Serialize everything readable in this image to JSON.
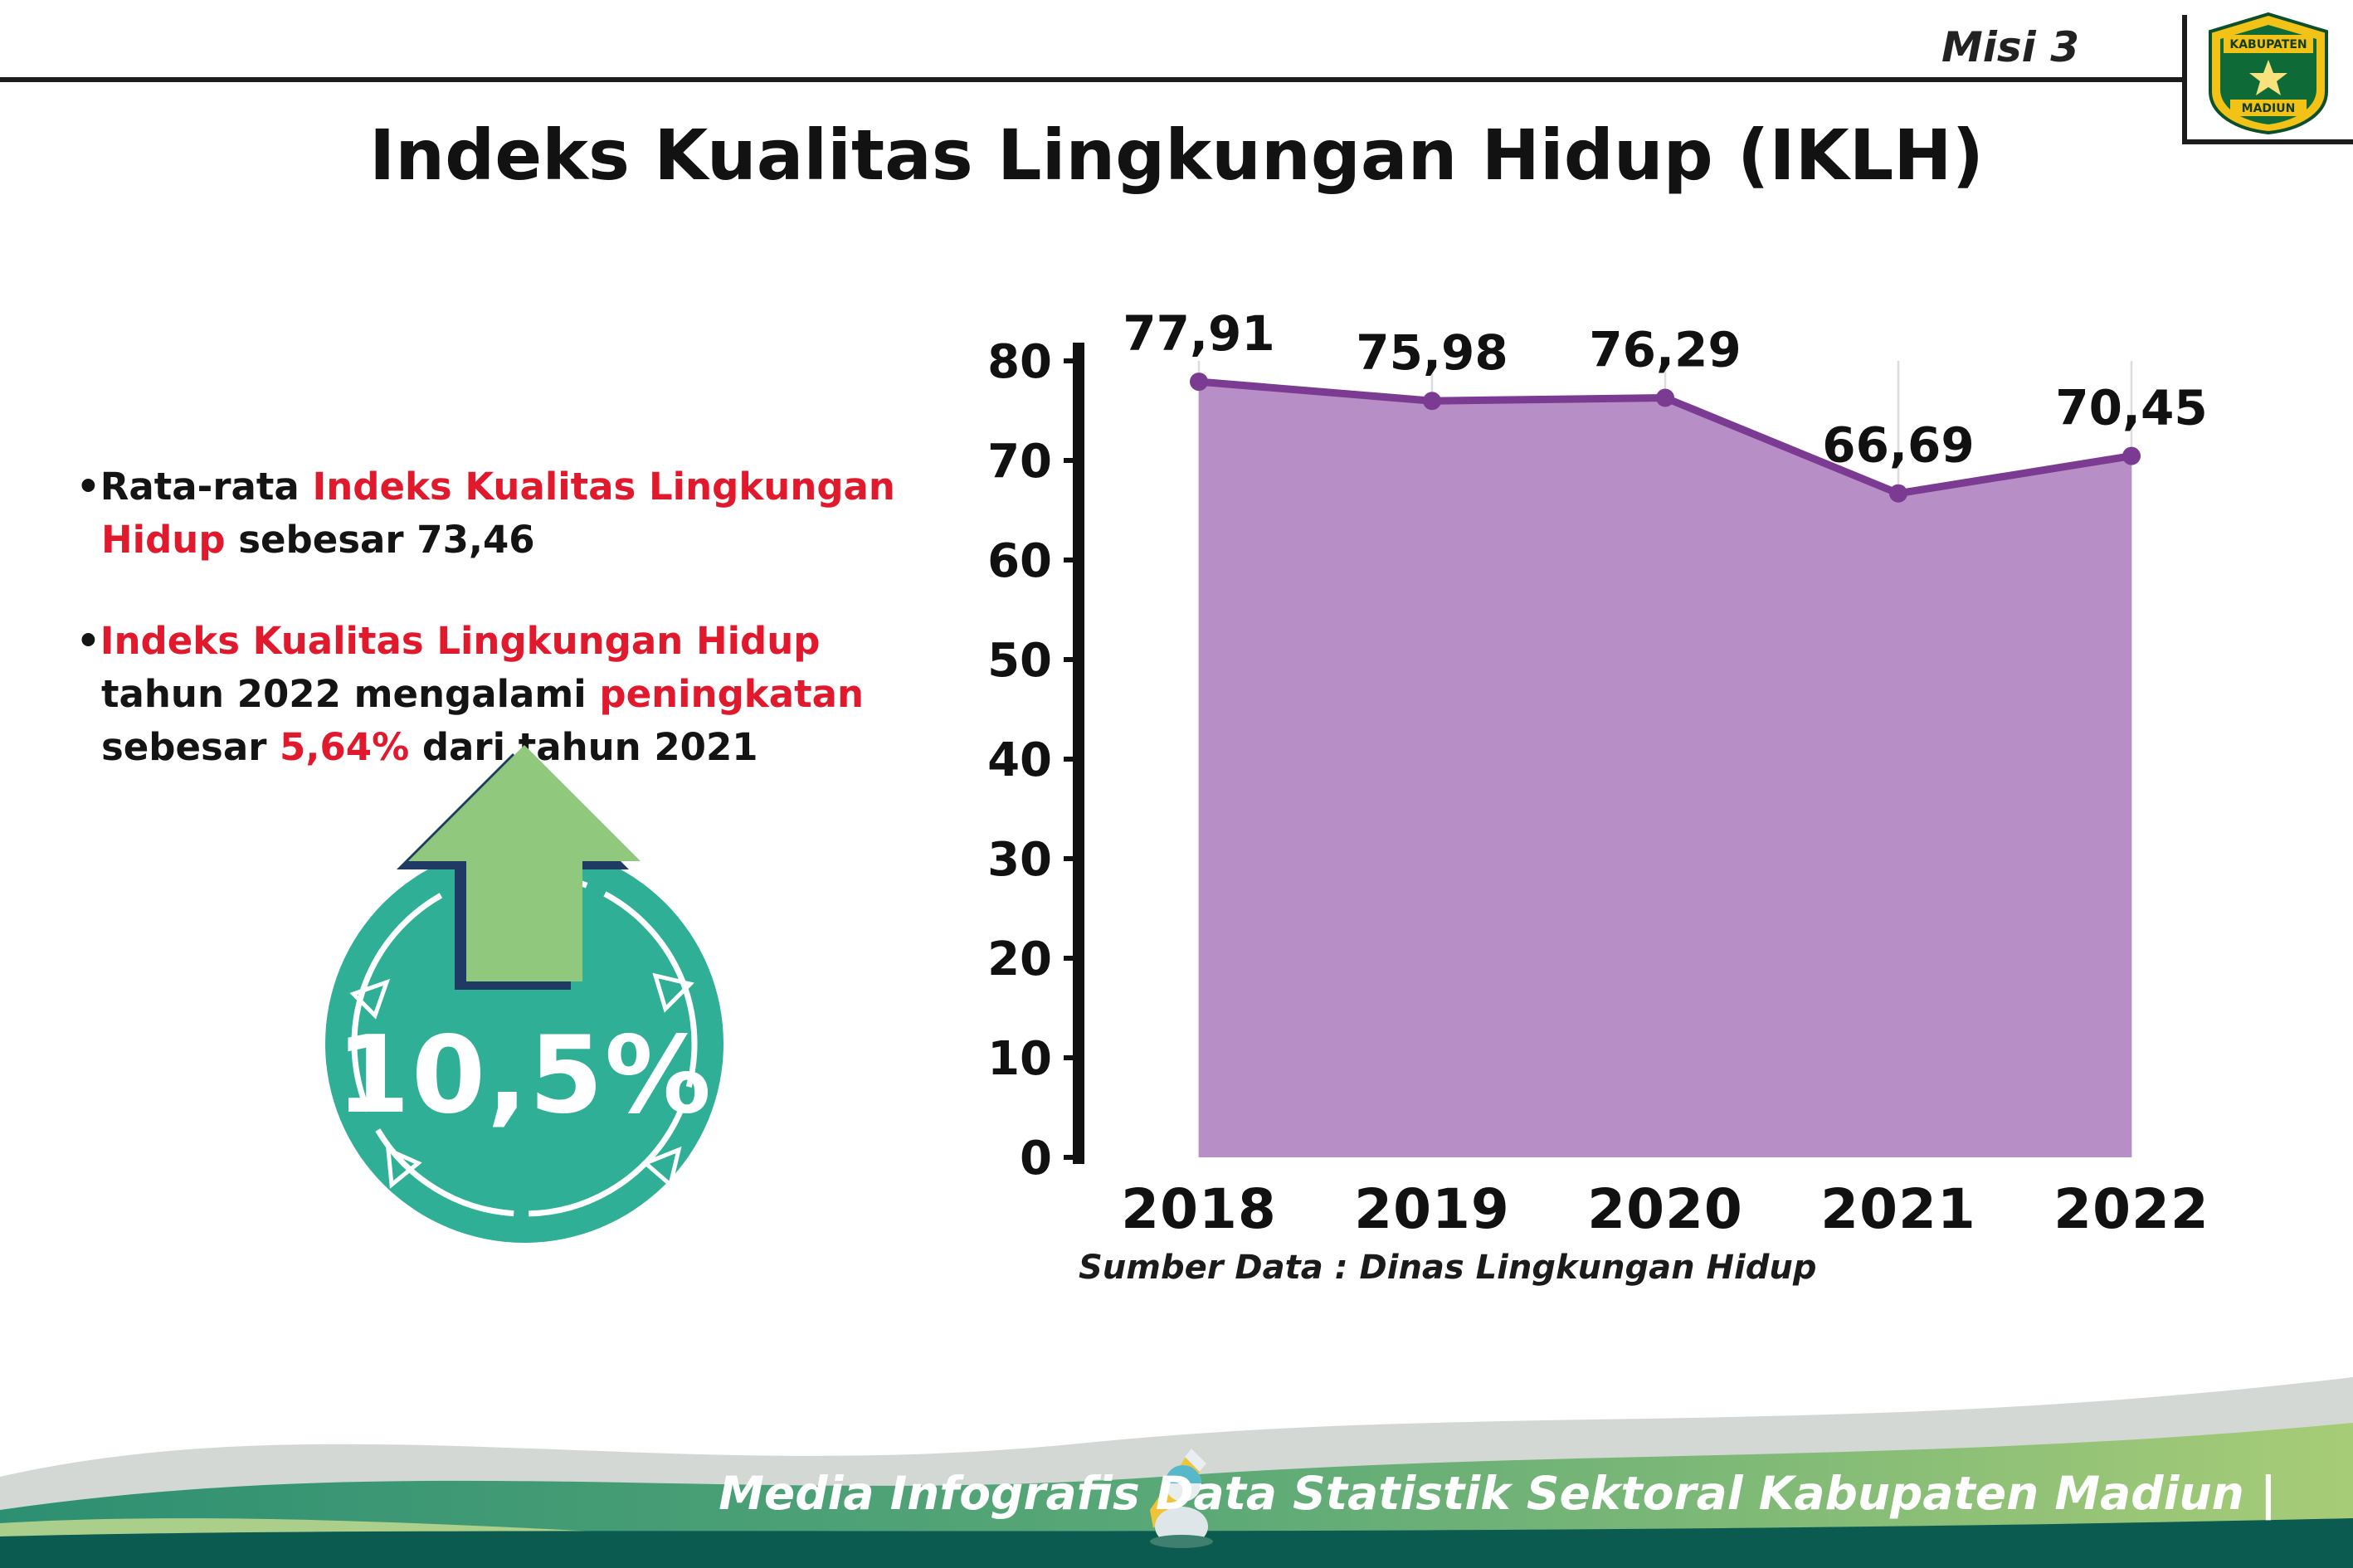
{
  "page": {
    "misi_label": "Misi 3",
    "title": "Indeks Kualitas Lingkungan Hidup (IKLH)",
    "source_note": "Sumber Data : Dinas Lingkungan Hidup",
    "footer_text": "Media Infografis Data Statistik Sektoral Kabupaten Madiun |"
  },
  "logo": {
    "top": "KABUPATEN",
    "bottom": "MADIUN"
  },
  "bullets": [
    {
      "segments": [
        {
          "text": "Rata-rata ",
          "color": "black"
        },
        {
          "text": "Indeks Kualitas Lingkungan Hidup",
          "color": "red"
        },
        {
          "text": " sebesar 73,46",
          "color": "black"
        }
      ]
    },
    {
      "segments": [
        {
          "text": "Indeks Kualitas Lingkungan Hidup",
          "color": "red"
        },
        {
          "text": " tahun 2022 mengalami ",
          "color": "black"
        },
        {
          "text": "peningkatan",
          "color": "red"
        },
        {
          "text": " sebesar ",
          "color": "black"
        },
        {
          "text": "5,64%",
          "color": "red"
        },
        {
          "text": " dari tahun 2021",
          "color": "black"
        }
      ]
    }
  ],
  "badge": {
    "value": "10,5%"
  },
  "chart_data": {
    "type": "area",
    "title": "",
    "xlabel": "",
    "ylabel": "",
    "categories": [
      "2018",
      "2019",
      "2020",
      "2021",
      "2022"
    ],
    "values": [
      77.91,
      75.98,
      76.29,
      66.69,
      70.45
    ],
    "value_labels": [
      "77,91",
      "75,98",
      "76,29",
      "66,69",
      "70,45"
    ],
    "ylim": [
      0,
      80
    ],
    "ytick_step": 10,
    "grid": "vertical",
    "legend": "none",
    "fill_color": "#b78fc6",
    "line_color": "#7b3b92"
  },
  "colors": {
    "accent_red": "#e0192c",
    "badge_teal": "#2fb096",
    "arrow_green": "#90c97d",
    "arrow_outline": "#1f3b63",
    "footer_dark": "#0b5b50"
  }
}
